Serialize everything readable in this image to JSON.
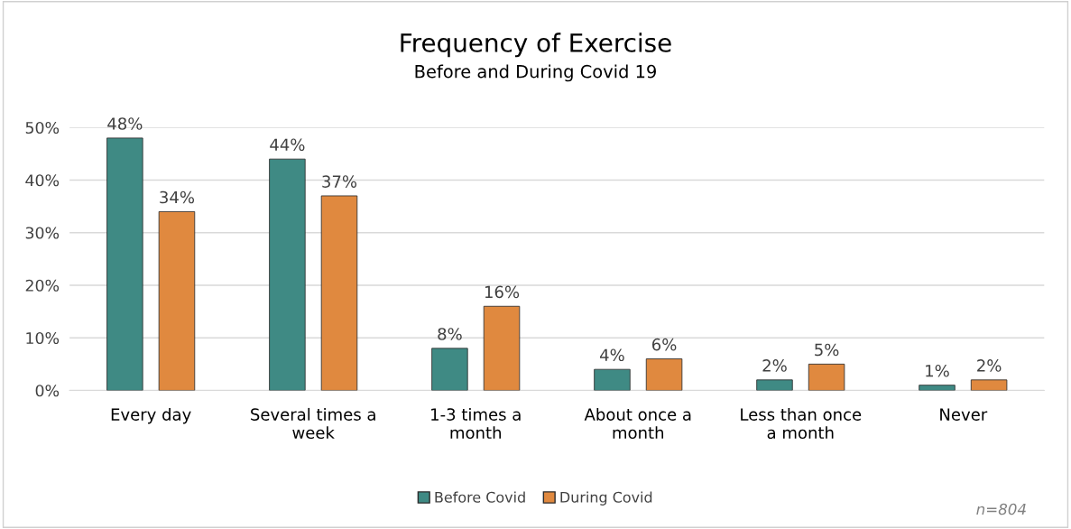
{
  "chart_data": {
    "type": "bar",
    "title": "Frequency of Exercise",
    "subtitle": "Before and During Covid 19",
    "categories": [
      "Every day",
      "Several times a\nweek",
      "1-3 times a\nmonth",
      "About once a\nmonth",
      "Less than once\na month",
      "Never"
    ],
    "series": [
      {
        "name": "Before Covid",
        "color": "#3f8a84",
        "values": [
          48,
          44,
          8,
          4,
          2,
          1
        ],
        "value_labels": [
          "48%",
          "44%",
          "8%",
          "4%",
          "2%",
          "1%"
        ]
      },
      {
        "name": "During Covid",
        "color": "#e0893f",
        "values": [
          34,
          37,
          16,
          6,
          5,
          2
        ],
        "value_labels": [
          "34%",
          "37%",
          "16%",
          "6%",
          "5%",
          "2%"
        ]
      }
    ],
    "ylim": [
      0,
      50
    ],
    "yticks": [
      {
        "value": 0,
        "label": "0%"
      },
      {
        "value": 10,
        "label": "10%"
      },
      {
        "value": 20,
        "label": "20%"
      },
      {
        "value": 30,
        "label": "30%"
      },
      {
        "value": 40,
        "label": "40%"
      },
      {
        "value": 50,
        "label": "50%"
      }
    ],
    "grid": "y",
    "legend": "bottom",
    "annotations": [
      "n=804"
    ]
  }
}
